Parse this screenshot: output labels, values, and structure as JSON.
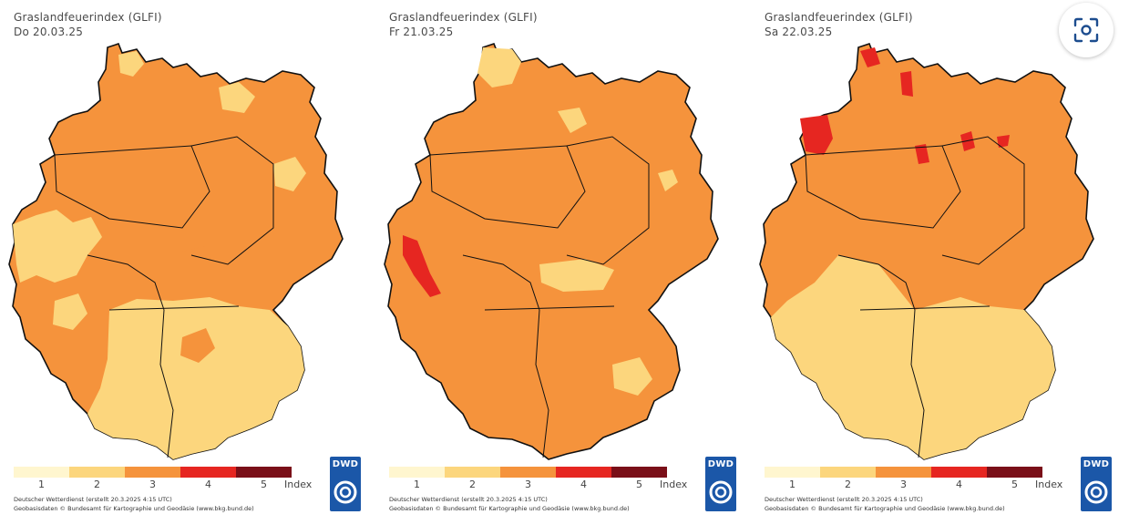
{
  "colors": {
    "level1": "#fff6cf",
    "level2": "#fcd67d",
    "level3": "#f5933c",
    "level4": "#e62621",
    "level5": "#7a0f18",
    "border": "#111111",
    "dwd": "#1b57a8"
  },
  "panels": [
    {
      "title": "Graslandfeuerindex (GLFI)",
      "date": "Do 20.03.25",
      "map": {
        "base_level": 3,
        "dominant_south_level": 2
      }
    },
    {
      "title": "Graslandfeuerindex (GLFI)",
      "date": "Fr 21.03.25",
      "map": {
        "base_level": 3,
        "dominant_south_level": 3
      }
    },
    {
      "title": "Graslandfeuerindex (GLFI)",
      "date": "Sa 22.03.25",
      "map": {
        "base_level": 3,
        "dominant_south_level": 2
      }
    }
  ],
  "legend": {
    "labels": [
      "1",
      "2",
      "3",
      "4",
      "5"
    ],
    "suffix": "Index"
  },
  "footer": {
    "line1": "Deutscher Wetterdienst (erstellt 20.3.2025 4:15 UTC)",
    "line2": "Geobasisdaten © Bundesamt für Kartographie und Geodäsie (www.bkg.bund.de)"
  },
  "logo": {
    "text": "DWD"
  },
  "lens_button": {
    "icon": "lens-scan-icon"
  }
}
